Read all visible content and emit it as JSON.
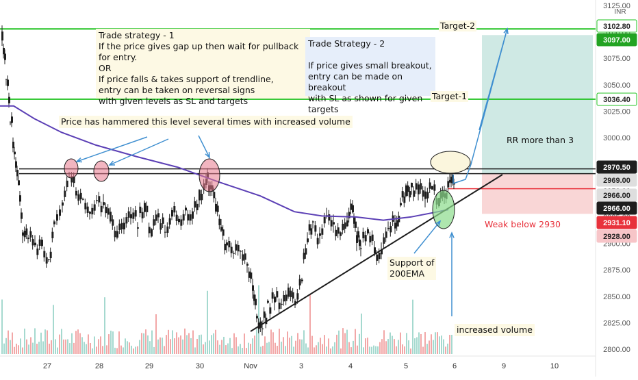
{
  "chart_data": {
    "type": "candlestick",
    "currency": "INR",
    "ylim": [
      2800,
      3125
    ],
    "y_ticks": [
      "3125.00",
      "3100.00",
      "3075.00",
      "3050.00",
      "3025.00",
      "3000.00",
      "2975.00",
      "2950.00",
      "2925.00",
      "2900.00",
      "2875.00",
      "2850.00",
      "2825.00",
      "2800.00"
    ],
    "x_ticks": [
      "27",
      "28",
      "29",
      "30",
      "Nov",
      "3",
      "4",
      "5",
      "6",
      "9",
      "10"
    ],
    "ema_label": "200EMA",
    "price_badges": [
      {
        "label": "3102.80",
        "value": 3102.8,
        "color": "#1e1e1e",
        "bg": "#ffffff",
        "border": "#22c322"
      },
      {
        "label": "3097.00",
        "value": 3097.0,
        "color": "#ffffff",
        "bg": "#22a322",
        "border": "#22a322"
      },
      {
        "label": "3036.40",
        "value": 3036.4,
        "color": "#1e1e1e",
        "bg": "#ffffff",
        "border": "#22c322"
      },
      {
        "label": "2970.50",
        "value": 2970.5,
        "color": "#ffffff",
        "bg": "#1e1e1e",
        "border": "#1e1e1e"
      },
      {
        "label": "2969.00",
        "value": 2969.0,
        "color": "#1e1e1e",
        "bg": "#dedede",
        "border": "#dedede"
      },
      {
        "label": "2966.00",
        "value": 2966.0,
        "color": "#1e1e1e",
        "bg": "#dedede",
        "border": "#dedede"
      },
      {
        "label": "2966.00",
        "value": 2966.0,
        "color": "#ffffff",
        "bg": "#1e1e1e",
        "border": "#1e1e1e"
      },
      {
        "label": "2931.10",
        "value": 2931.1,
        "color": "#ffffff",
        "bg": "#e8323c",
        "border": "#e8323c"
      },
      {
        "label": "2928.00",
        "value": 2928.0,
        "color": "#1e1e1e",
        "bg": "#f7c5c8",
        "border": "#f7c5c8"
      }
    ],
    "levels": {
      "target_2": 3102.8,
      "target_1": 3036.4,
      "resistance_upper": 2970.5,
      "resistance_lower": 2966.0,
      "entry": 2966.0,
      "stop": 2931.1,
      "rr_top": 3097.0,
      "rr_bottom": 2928.0
    },
    "colors": {
      "up": "#26a69a",
      "down": "#ef5350",
      "candle": "#1e1e1e",
      "ema": "#5b3fb5",
      "target": "#22c322",
      "stop": "#e8323c",
      "arrow": "#3f8fd0"
    }
  },
  "annotations": {
    "strategy_1": "Trade strategy - 1\nIf the price gives gap up then wait for pullback for entry.\nOR\nIf price falls & takes support of trendline,\nentry can be taken on reversal signs\nwith given levels as SL and targets",
    "strategy_2": "Trade Strategy - 2\n\nIf price gives small breakout,\nentry can be made on breakout\nwith SL as shown for given targets",
    "hammered": "Price has hammered this level several times with increased volume",
    "target_2": "Target-2",
    "target_1": "Target-1",
    "rr": "RR more than 3",
    "weak": "Weak below 2930",
    "support": "Support of\n200EMA",
    "volume": "increased volume"
  }
}
